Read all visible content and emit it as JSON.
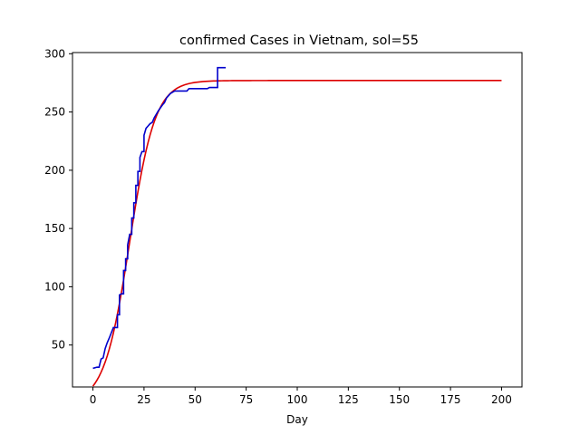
{
  "chart_data": {
    "type": "line",
    "title": "confirmed Cases in Vietnam, sol=55",
    "xlabel": "Day",
    "ylabel": "",
    "xlim": [
      -10,
      210
    ],
    "ylim": [
      14,
      301
    ],
    "xticks": [
      0,
      25,
      50,
      75,
      100,
      125,
      150,
      175,
      200
    ],
    "yticks": [
      50,
      100,
      150,
      200,
      250,
      300
    ],
    "grid": false,
    "series": [
      {
        "color": "#0000cc",
        "x": [
          0,
          2,
          3,
          4,
          5,
          6,
          7,
          8,
          10,
          12,
          13,
          14,
          15,
          16,
          17,
          18,
          19,
          20,
          21,
          22,
          23,
          24,
          25,
          26,
          27,
          28,
          29,
          30,
          32,
          34,
          35,
          36,
          37,
          38,
          40,
          42,
          46,
          47,
          50,
          54,
          56,
          57,
          60,
          61,
          62,
          64,
          65
        ],
        "y": [
          30,
          31,
          31,
          38,
          39,
          47,
          52,
          56,
          65,
          76,
          93,
          94,
          114,
          124,
          136,
          145,
          159,
          172,
          187,
          199,
          211,
          216,
          230,
          236,
          238,
          240,
          241,
          245,
          251,
          256,
          258,
          262,
          264,
          266,
          268,
          268,
          268,
          270,
          270,
          270,
          270,
          271,
          271,
          288,
          288,
          288,
          288
        ]
      },
      {
        "color": "#dd0000",
        "model": "logistic",
        "K": 277,
        "r": 0.16,
        "t0": 18,
        "x_range": [
          0,
          200
        ]
      }
    ]
  }
}
